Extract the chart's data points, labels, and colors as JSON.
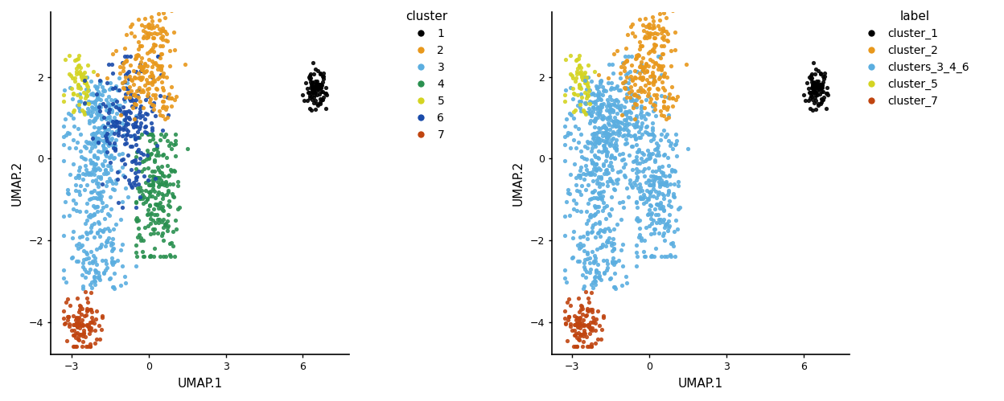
{
  "xlabel": "UMAP.1",
  "ylabel": "UMAP.2",
  "xlim": [
    -3.8,
    7.8
  ],
  "ylim": [
    -4.8,
    3.6
  ],
  "xticks": [
    -3,
    0,
    3,
    6
  ],
  "yticks": [
    -4,
    -2,
    0,
    2
  ],
  "cluster_colors": {
    "1": "#000000",
    "2": "#E8981C",
    "3": "#5BAEE0",
    "4": "#2A9050",
    "5": "#D4D422",
    "6": "#1A4BAA",
    "7": "#C04510"
  },
  "label_colors": {
    "cluster_1": "#000000",
    "cluster_2": "#E8981C",
    "clusters_3_4_6": "#5BAEE0",
    "cluster_5": "#D4D422",
    "cluster_7": "#C04510"
  },
  "point_size": 14,
  "alpha": 0.9,
  "background_color": "#ffffff",
  "legend1_title": "cluster",
  "legend2_title": "label",
  "legend_labels_1": [
    "1",
    "2",
    "3",
    "4",
    "5",
    "6",
    "7"
  ],
  "legend_labels_2": [
    "cluster_1",
    "cluster_2",
    "clusters_3_4_6",
    "cluster_5",
    "cluster_7"
  ]
}
